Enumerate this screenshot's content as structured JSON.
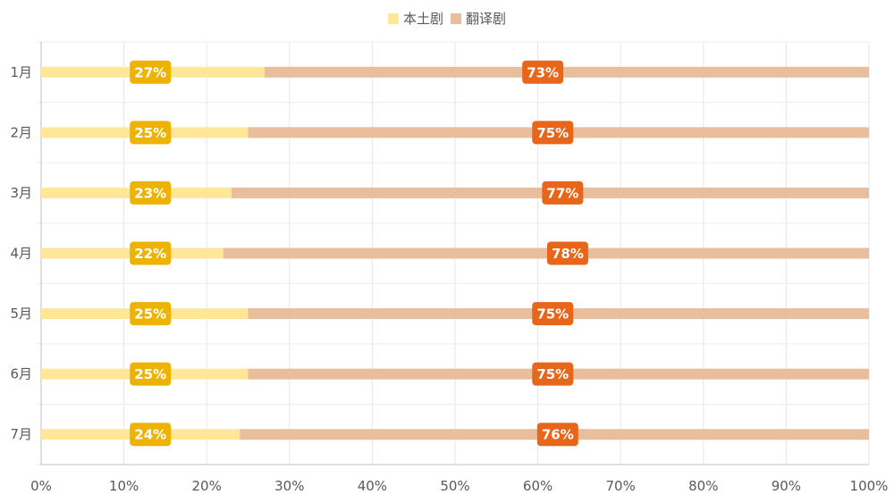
{
  "chart_data": {
    "type": "bar",
    "orientation": "horizontal",
    "stacked": true,
    "percent_stacked": true,
    "categories": [
      "1月",
      "2月",
      "3月",
      "4月",
      "5月",
      "6月",
      "7月"
    ],
    "series": [
      {
        "name": "本土剧",
        "values": [
          27,
          25,
          23,
          22,
          25,
          25,
          24
        ],
        "labels": [
          "27%",
          "25%",
          "23%",
          "22%",
          "25%",
          "25%",
          "24%"
        ],
        "color": "#FFE699",
        "label_color": "#EDB300"
      },
      {
        "name": "翻译剧",
        "values": [
          73,
          75,
          77,
          78,
          75,
          75,
          76
        ],
        "labels": [
          "73%",
          "75%",
          "77%",
          "78%",
          "75%",
          "75%",
          "76%"
        ],
        "color": "#E8BE9C",
        "label_color": "#E8661A"
      }
    ],
    "xlim": [
      0,
      100
    ],
    "xticks": [
      "0%",
      "10%",
      "20%",
      "30%",
      "40%",
      "50%",
      "60%",
      "70%",
      "80%",
      "90%",
      "100%"
    ],
    "grid": true,
    "legend_position": "top-center"
  }
}
